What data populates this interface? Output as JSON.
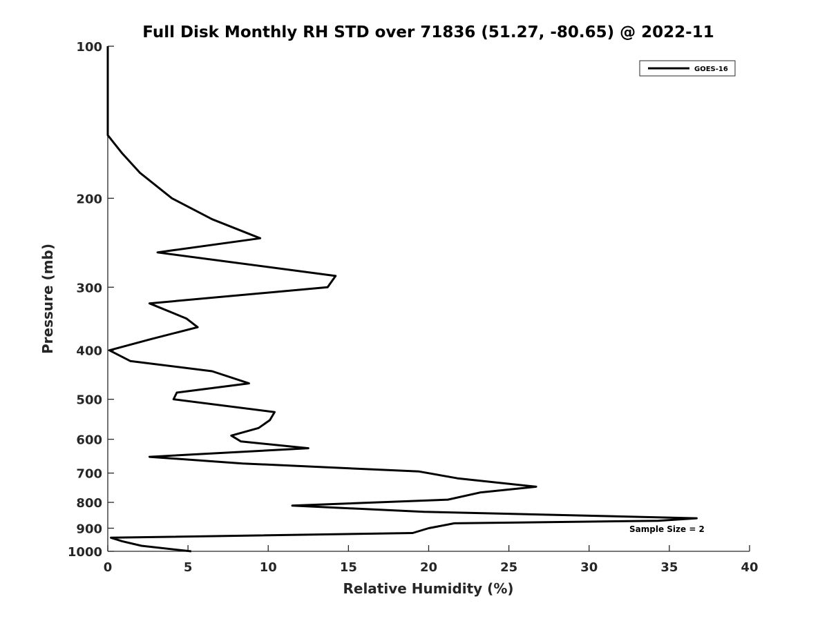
{
  "chart_data": {
    "type": "line",
    "title": "Full Disk Monthly RH STD over 71836 (51.27, -80.65) @ 2022-11",
    "xlabel": "Relative Humidity (%)",
    "ylabel": "Pressure (mb)",
    "xlim": [
      0,
      40
    ],
    "ylim": [
      100,
      1000
    ],
    "y_scale": "log",
    "y_reversed": true,
    "grid": false,
    "legend_position": "top-right",
    "annotation": "Sample Size = 2",
    "x_ticks": [
      "0",
      "5",
      "10",
      "15",
      "20",
      "25",
      "30",
      "35",
      "40"
    ],
    "y_ticks": [
      "100",
      "200",
      "300",
      "400",
      "500",
      "600",
      "700",
      "800",
      "900",
      "1000"
    ],
    "series": [
      {
        "name": "GOES-16",
        "color": "#000000",
        "x": [
          0,
          0,
          0,
          0.9,
          2.0,
          4.0,
          6.5,
          9.5,
          3.1,
          14.2,
          13.7,
          2.6,
          4.9,
          5.6,
          2.7,
          0.1,
          1.4,
          6.5,
          8.8,
          4.3,
          4.1,
          10.4,
          10.1,
          9.4,
          7.7,
          8.3,
          12.5,
          2.6,
          8.4,
          19.4,
          21.8,
          26.7,
          23.2,
          21.2,
          11.5,
          19.7,
          36.7,
          34.3,
          21.6,
          20.0,
          19.0,
          0.2,
          0.9,
          2.1,
          5.2
        ],
        "y": [
          100,
          120,
          150,
          163,
          178,
          200,
          220,
          240,
          256,
          285,
          300,
          323,
          346,
          360,
          380,
          400,
          420,
          440,
          465,
          485,
          500,
          530,
          550,
          570,
          590,
          606,
          625,
          650,
          670,
          695,
          717,
          745,
          765,
          790,
          812,
          835,
          860,
          870,
          880,
          900,
          920,
          940,
          955,
          975,
          1000
        ]
      }
    ]
  }
}
